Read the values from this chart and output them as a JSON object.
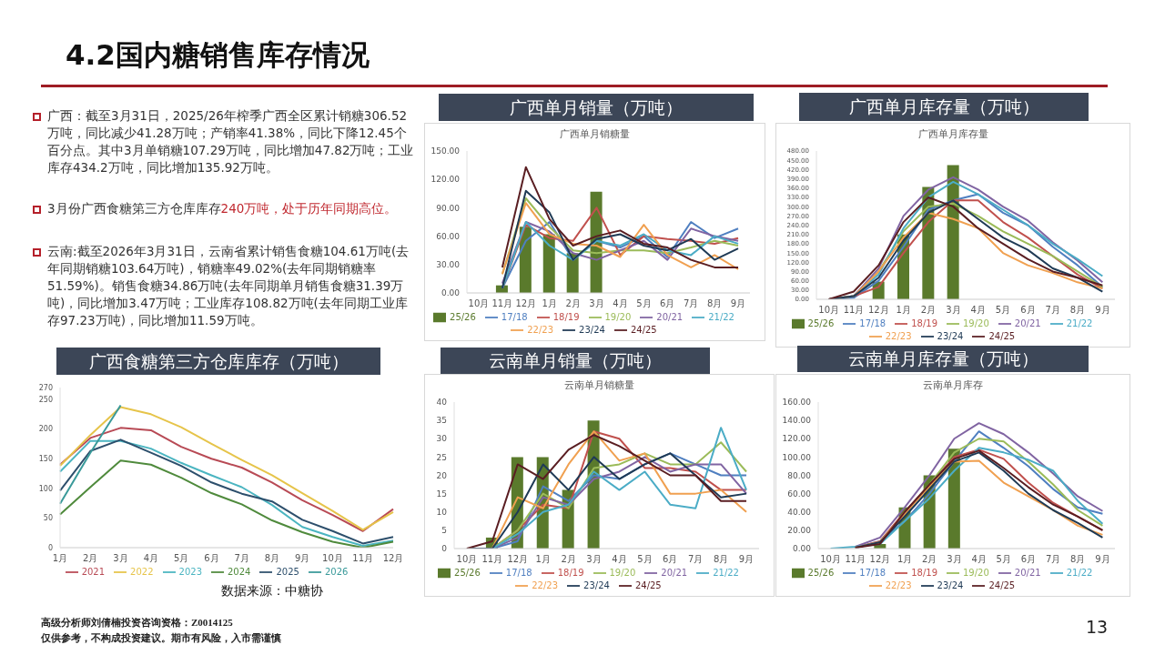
{
  "chart_data": [
    {
      "type": "other",
      "title": "4.2国内糖销售库存情况",
      "annotations": [
        "广西：截至3月31日，2025/26年榨季广西全区累计销糖306.52万吨，同比减少41.28万吨；产销率41.38%，同比下降12.45个百分点。其中3月单销糖107.29万吨，同比增加47.82万吨；工业库存434.2万吨，同比增加135.92万吨。",
        "3月份广西食糖第三方仓库库存",
        "240万吨，处于历年同期高位。",
        "云南:截至2026年3月31日，云南省累计销售食糖104.61万吨(去年同期销糖103.64万吨)，销糖率49.02%(去年同期销糖率51.59%)。销售食糖34.86万吨(去年同期单月销售食糖31.39万吨)，同比增加3.47万吨；工业库存108.82万吨(去年同期工业库存97.23万吨)，同比增加11.59万吨。",
        "数据来源：中糖协",
        "高级分析师刘倩楠投资咨询资格：Z0014125",
        "仅供参考，不构成投资建议。期市有风险，入市需谨慎",
        "13"
      ]
    },
    {
      "type": "line",
      "title": "广西单月销量（万吨）",
      "subtitle": "广西单月销糖量",
      "legend": "bottom",
      "categories": [
        "10月",
        "11月",
        "12月",
        "1月",
        "2月",
        "3月",
        "4月",
        "5月",
        "6月",
        "7月",
        "8月",
        "9月"
      ],
      "ylim": [
        0,
        150
      ],
      "yticks": [
        {
          "value": 0,
          "label": "0.00"
        },
        {
          "value": 30,
          "label": "30.00"
        },
        {
          "value": 60,
          "label": "60.00"
        },
        {
          "value": 90,
          "label": "90.00"
        },
        {
          "value": 120,
          "label": "120.00"
        },
        {
          "value": 150,
          "label": "150.00"
        }
      ],
      "series": [
        {
          "name": "25/26",
          "type": "bar",
          "color": "#5a7a2c",
          "values": [
            null,
            8,
            70,
            62,
            42,
            107,
            null,
            null,
            null,
            null,
            null,
            null
          ]
        },
        {
          "name": "17/18",
          "color": "#4f7fc0",
          "values": [
            null,
            5,
            55,
            75,
            35,
            55,
            48,
            60,
            38,
            75,
            58,
            68
          ]
        },
        {
          "name": "18/19",
          "color": "#c0504d",
          "values": [
            null,
            5,
            72,
            58,
            55,
            90,
            40,
            60,
            57,
            55,
            52,
            58
          ]
        },
        {
          "name": "19/20",
          "color": "#9bbb59",
          "values": [
            null,
            20,
            100,
            70,
            45,
            42,
            45,
            45,
            42,
            48,
            55,
            50
          ]
        },
        {
          "name": "20/21",
          "color": "#8064a2",
          "values": [
            null,
            10,
            75,
            65,
            42,
            35,
            45,
            55,
            35,
            68,
            60,
            55
          ]
        },
        {
          "name": "21/22",
          "color": "#4bacc6",
          "values": [
            null,
            5,
            75,
            50,
            35,
            55,
            50,
            62,
            45,
            40,
            60,
            52
          ]
        },
        {
          "name": "22/23",
          "color": "#f0a050",
          "values": [
            null,
            20,
            95,
            62,
            52,
            50,
            38,
            72,
            40,
            27,
            40,
            25
          ]
        },
        {
          "name": "23/24",
          "color": "#1f3a55",
          "values": [
            null,
            5,
            108,
            85,
            35,
            57,
            62,
            50,
            45,
            57,
            35,
            47
          ]
        },
        {
          "name": "24/25",
          "color": "#5a1e22",
          "values": [
            null,
            27,
            133,
            78,
            50,
            60,
            66,
            52,
            48,
            35,
            27,
            27
          ]
        }
      ]
    },
    {
      "type": "line",
      "title": "广西单月库存量（万吨）",
      "subtitle": "广西单月库存量",
      "legend": "bottom",
      "categories": [
        "10月",
        "11月",
        "12月",
        "1月",
        "2月",
        "3月",
        "4月",
        "5月",
        "6月",
        "7月",
        "8月",
        "9月"
      ],
      "ylim": [
        0,
        480
      ],
      "yticks": [
        {
          "value": 0,
          "label": "0.00"
        },
        {
          "value": 30,
          "label": "30.00"
        },
        {
          "value": 60,
          "label": "60.00"
        },
        {
          "value": 90,
          "label": "90.00"
        },
        {
          "value": 120,
          "label": "120.00"
        },
        {
          "value": 150,
          "label": "150.00"
        },
        {
          "value": 180,
          "label": "180.00"
        },
        {
          "value": 210,
          "label": "210.00"
        },
        {
          "value": 240,
          "label": "240.00"
        },
        {
          "value": 270,
          "label": "270.00"
        },
        {
          "value": 300,
          "label": "300.00"
        },
        {
          "value": 330,
          "label": "330.00"
        },
        {
          "value": 360,
          "label": "360.00"
        },
        {
          "value": 390,
          "label": "390.00"
        },
        {
          "value": 420,
          "label": "420.00"
        },
        {
          "value": 450,
          "label": "450.00"
        },
        {
          "value": 480,
          "label": "480.00"
        }
      ],
      "series": [
        {
          "name": "25/26",
          "type": "bar",
          "color": "#5a7a2c",
          "values": [
            null,
            null,
            57,
            210,
            364,
            434,
            null,
            null,
            null,
            null,
            null,
            null
          ]
        },
        {
          "name": "17/18",
          "color": "#4f7fc0",
          "values": [
            0,
            5,
            60,
            170,
            290,
            320,
            340,
            280,
            240,
            170,
            110,
            40
          ]
        },
        {
          "name": "18/19",
          "color": "#c0504d",
          "values": [
            0,
            10,
            40,
            150,
            250,
            320,
            320,
            250,
            200,
            140,
            80,
            35
          ]
        },
        {
          "name": "19/20",
          "color": "#9bbb59",
          "values": [
            0,
            10,
            90,
            220,
            300,
            310,
            270,
            220,
            180,
            140,
            90,
            40
          ]
        },
        {
          "name": "20/21",
          "color": "#8064a2",
          "values": [
            0,
            10,
            100,
            270,
            355,
            395,
            355,
            300,
            255,
            185,
            125,
            55
          ]
        },
        {
          "name": "21/22",
          "color": "#4bacc6",
          "values": [
            0,
            10,
            80,
            230,
            330,
            380,
            340,
            290,
            240,
            180,
            130,
            75
          ]
        },
        {
          "name": "22/23",
          "color": "#f0a050",
          "values": [
            0,
            10,
            90,
            200,
            280,
            260,
            230,
            150,
            110,
            85,
            55,
            35
          ]
        },
        {
          "name": "23/24",
          "color": "#1f3a55",
          "values": [
            0,
            10,
            70,
            190,
            280,
            320,
            260,
            200,
            160,
            100,
            70,
            25
          ]
        },
        {
          "name": "24/25",
          "color": "#5a1e22",
          "values": [
            0,
            25,
            110,
            250,
            330,
            300,
            230,
            180,
            130,
            90,
            70,
            45
          ]
        }
      ]
    },
    {
      "type": "line",
      "title": "广西食糖第三方仓库库存（万吨）",
      "legend": "bottom",
      "categories": [
        "1月",
        "2月",
        "3月",
        "4月",
        "5月",
        "6月",
        "7月",
        "8月",
        "9月",
        "10月",
        "11月",
        "12月"
      ],
      "ylim": [
        0,
        270
      ],
      "yticks": [
        0,
        50,
        100,
        150,
        200,
        250,
        270
      ],
      "series": [
        {
          "name": "2021",
          "color": "#b84a55",
          "values": [
            140,
            185,
            202,
            198,
            170,
            150,
            135,
            110,
            80,
            55,
            28,
            65
          ]
        },
        {
          "name": "2022",
          "color": "#e6c44a",
          "values": [
            138,
            190,
            237,
            225,
            203,
            175,
            148,
            122,
            92,
            62,
            30,
            60
          ]
        },
        {
          "name": "2023",
          "color": "#4bb5c1",
          "values": [
            128,
            180,
            180,
            167,
            143,
            122,
            102,
            72,
            35,
            18,
            3,
            12
          ]
        },
        {
          "name": "2024",
          "color": "#4f8a3c",
          "values": [
            56,
            102,
            147,
            140,
            118,
            92,
            73,
            46,
            26,
            10,
            0,
            10
          ]
        },
        {
          "name": "2025",
          "color": "#2d4f6c",
          "values": [
            96,
            163,
            182,
            160,
            138,
            110,
            91,
            78,
            47,
            28,
            7,
            18
          ]
        },
        {
          "name": "2026",
          "color": "#3a9a9a",
          "values": [
            74,
            160,
            240,
            null,
            null,
            null,
            null,
            null,
            null,
            null,
            null,
            null
          ]
        }
      ]
    },
    {
      "type": "line",
      "title": "云南单月销量（万吨）",
      "subtitle": "云南单月销糖量",
      "legend": "bottom",
      "categories": [
        "10月",
        "11月",
        "12月",
        "1月",
        "2月",
        "3月",
        "4月",
        "5月",
        "6月",
        "7月",
        "8月",
        "9月"
      ],
      "ylim": [
        0,
        40
      ],
      "yticks": [
        0,
        5,
        10,
        15,
        20,
        25,
        30,
        35,
        40
      ],
      "series": [
        {
          "name": "25/26",
          "type": "bar",
          "color": "#5a7a2c",
          "values": [
            null,
            3,
            25,
            25,
            16,
            35,
            null,
            null,
            null,
            null,
            null,
            null
          ]
        },
        {
          "name": "17/18",
          "color": "#4f7fc0",
          "values": [
            0,
            0,
            2,
            17,
            13,
            20,
            19,
            23,
            26,
            23,
            20,
            20
          ]
        },
        {
          "name": "18/19",
          "color": "#c0504d",
          "values": [
            0,
            0,
            5,
            12,
            11,
            32,
            30,
            22,
            22,
            21,
            16,
            16
          ]
        },
        {
          "name": "19/20",
          "color": "#9bbb59",
          "values": [
            0,
            0,
            5,
            15,
            11,
            22,
            23,
            26,
            23,
            23,
            29,
            21
          ]
        },
        {
          "name": "20/21",
          "color": "#8064a2",
          "values": [
            0,
            0,
            3,
            14,
            12,
            19,
            21,
            25,
            21,
            23,
            23,
            15
          ]
        },
        {
          "name": "21/22",
          "color": "#4bacc6",
          "values": [
            0,
            0,
            4,
            10,
            12,
            21,
            16,
            21,
            12,
            11,
            33,
            16
          ]
        },
        {
          "name": "22/23",
          "color": "#f0a050",
          "values": [
            0,
            0,
            14,
            11,
            23,
            32,
            24,
            26,
            15,
            15,
            16,
            10
          ]
        },
        {
          "name": "23/24",
          "color": "#1f3a55",
          "values": [
            0,
            0,
            10,
            23,
            16,
            25,
            19,
            23,
            26,
            20,
            14,
            15
          ]
        },
        {
          "name": "24/25",
          "color": "#5a1e22",
          "values": [
            0,
            2,
            23,
            19,
            27,
            31,
            28,
            24,
            20,
            20,
            13,
            13
          ]
        }
      ]
    },
    {
      "type": "line",
      "title": "云南单月库存量（万吨）",
      "subtitle": "云南单月库存",
      "legend": "bottom",
      "categories": [
        "10月",
        "11月",
        "12月",
        "1月",
        "2月",
        "3月",
        "4月",
        "5月",
        "6月",
        "7月",
        "8月",
        "9月"
      ],
      "ylim": [
        0,
        160
      ],
      "yticks": [
        {
          "value": 0,
          "label": "0.00"
        },
        {
          "value": 20,
          "label": "20.00"
        },
        {
          "value": 40,
          "label": "40.00"
        },
        {
          "value": 60,
          "label": "60.00"
        },
        {
          "value": 80,
          "label": "80.00"
        },
        {
          "value": 100,
          "label": "100.00"
        },
        {
          "value": 120,
          "label": "120.00"
        },
        {
          "value": 140,
          "label": "140.00"
        },
        {
          "value": 160,
          "label": "160.00"
        }
      ],
      "series": [
        {
          "name": "25/26",
          "type": "bar",
          "color": "#5a7a2c",
          "values": [
            null,
            null,
            5,
            45,
            80,
            109,
            null,
            null,
            null,
            null,
            null,
            null
          ]
        },
        {
          "name": "17/18",
          "color": "#4f7fc0",
          "values": [
            null,
            1,
            8,
            30,
            60,
            95,
            128,
            110,
            90,
            65,
            45,
            38
          ]
        },
        {
          "name": "18/19",
          "color": "#c0504d",
          "values": [
            null,
            1,
            8,
            40,
            70,
            100,
            108,
            98,
            72,
            50,
            35,
            20
          ]
        },
        {
          "name": "19/20",
          "color": "#9bbb59",
          "values": [
            null,
            1,
            7,
            38,
            70,
            105,
            120,
            117,
            95,
            70,
            42,
            25
          ]
        },
        {
          "name": "20/21",
          "color": "#8064a2",
          "values": [
            null,
            2,
            12,
            45,
            80,
            120,
            137,
            125,
            105,
            82,
            57,
            41
          ]
        },
        {
          "name": "21/22",
          "color": "#4bacc6",
          "values": [
            0,
            2,
            5,
            30,
            55,
            85,
            110,
            105,
            97,
            85,
            52,
            27
          ]
        },
        {
          "name": "22/23",
          "color": "#f0a050",
          "values": [
            null,
            1,
            7,
            38,
            68,
            95,
            96,
            72,
            57,
            42,
            25,
            15
          ]
        },
        {
          "name": "23/24",
          "color": "#1f3a55",
          "values": [
            null,
            1,
            7,
            35,
            65,
            95,
            105,
            85,
            60,
            42,
            28,
            12
          ]
        },
        {
          "name": "24/25",
          "color": "#5a1e22",
          "values": [
            null,
            1,
            5,
            40,
            70,
            98,
            107,
            88,
            67,
            48,
            35,
            20
          ]
        }
      ]
    }
  ]
}
